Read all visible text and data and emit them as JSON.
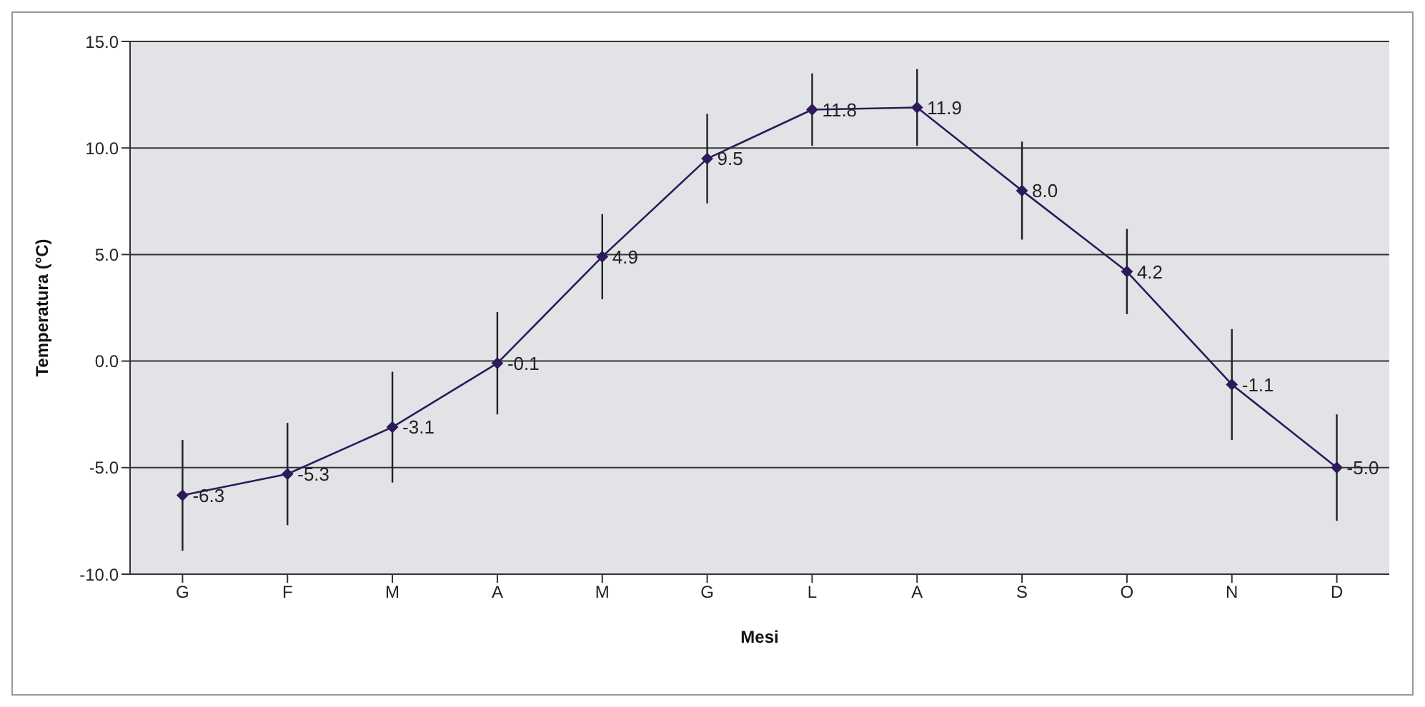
{
  "chart_data": {
    "type": "line",
    "xlabel": "Mesi",
    "ylabel": "Temperatura (°C)",
    "categories": [
      "G",
      "F",
      "M",
      "A",
      "M",
      "G",
      "L",
      "A",
      "S",
      "O",
      "N",
      "D"
    ],
    "series": [
      {
        "color": "#2e1a5a",
        "values": [
          -6.3,
          -5.3,
          -3.1,
          -0.1,
          4.9,
          9.5,
          11.8,
          11.9,
          8.0,
          4.2,
          -1.1,
          -5.0
        ],
        "errors": [
          2.6,
          2.4,
          2.6,
          2.4,
          2.0,
          2.1,
          1.7,
          1.8,
          2.3,
          2.0,
          2.6,
          2.5
        ],
        "value_labels": [
          "-6.3",
          "-5.3",
          "-3.1",
          "-0.1",
          "4.9",
          "9.5",
          "11.8",
          "11.9",
          "8.0",
          "4.2",
          "-1.1",
          "-5.0"
        ]
      }
    ],
    "ylim": [
      -10,
      15
    ],
    "yticks": [
      {
        "value": -10,
        "label": "-10.0"
      },
      {
        "value": -5,
        "label": "-5.0"
      },
      {
        "value": 0,
        "label": "0.0"
      },
      {
        "value": 5,
        "label": "5.0"
      },
      {
        "value": 10,
        "label": "10.0"
      },
      {
        "value": 15,
        "label": "15.0"
      }
    ],
    "grid": "y",
    "marker": "diamond",
    "line_style": "solid"
  }
}
